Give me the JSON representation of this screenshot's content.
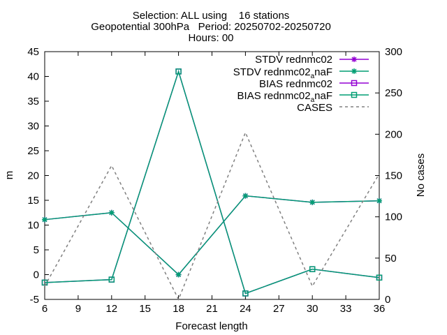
{
  "chart_data": {
    "type": "line",
    "title_lines": [
      "Selection: ALL using    16 stations",
      "Geopotential 300hPa   Period: 20250702-20250720",
      "Hours: 00"
    ],
    "xlabel": "Forecast length",
    "ylabel": "m",
    "y2label": "No cases",
    "xlim": [
      6,
      36
    ],
    "ylim": [
      -5,
      45
    ],
    "y2lim": [
      0,
      300
    ],
    "xticks": [
      6,
      9,
      12,
      15,
      18,
      21,
      24,
      27,
      30,
      33,
      36
    ],
    "yticks": [
      -5,
      0,
      5,
      10,
      15,
      20,
      25,
      30,
      35,
      40,
      45
    ],
    "y2ticks": [
      0,
      50,
      100,
      150,
      200,
      250,
      300
    ],
    "grid": false,
    "legend_position": "top-right",
    "series": [
      {
        "name": "STDV rednmc02",
        "axis": "y1",
        "color": "#9400d3",
        "marker": "star",
        "x": [
          6,
          12,
          18,
          24,
          30,
          36
        ],
        "values": [
          11.1,
          12.5,
          0,
          15.9,
          14.6,
          14.9
        ]
      },
      {
        "name_main": "STDV rednmc02",
        "name_sub": "a",
        "name_tail": "naF",
        "axis": "y1",
        "color": "#009e73",
        "marker": "star",
        "x": [
          6,
          12,
          18,
          24,
          30,
          36
        ],
        "values": [
          11.1,
          12.5,
          0,
          15.9,
          14.6,
          14.9
        ]
      },
      {
        "name": "BIAS rednmc02",
        "axis": "y1",
        "color": "#9400d3",
        "marker": "square",
        "x": [
          6,
          12,
          18,
          24,
          30,
          36
        ],
        "values": [
          -1.6,
          -1.0,
          41.0,
          -3.8,
          1.1,
          -0.6
        ]
      },
      {
        "name_main": "BIAS rednmc02",
        "name_sub": "a",
        "name_tail": "naF",
        "axis": "y1",
        "color": "#009e73",
        "marker": "square",
        "x": [
          6,
          12,
          18,
          24,
          30,
          36
        ],
        "values": [
          -1.6,
          -1.0,
          41.0,
          -3.8,
          1.1,
          -0.6
        ]
      },
      {
        "name": "CASES",
        "axis": "y2",
        "color": "#808080",
        "marker": "none",
        "dashed": true,
        "x": [
          6,
          12,
          18,
          24,
          30,
          36
        ],
        "values": [
          16,
          162,
          0,
          202,
          16,
          152
        ]
      }
    ]
  }
}
